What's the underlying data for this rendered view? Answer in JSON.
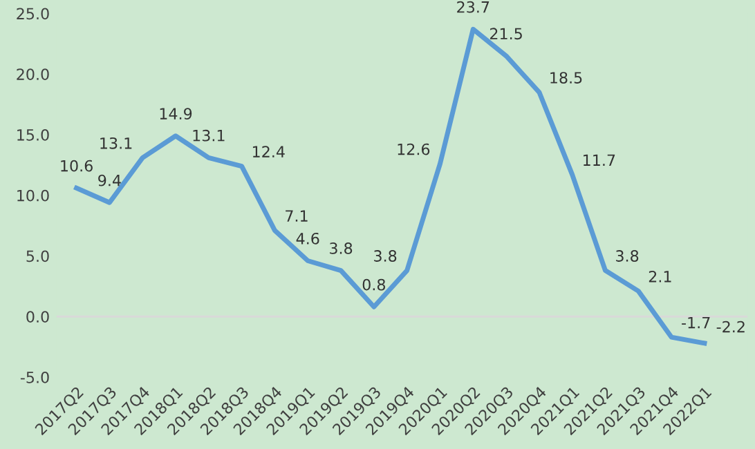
{
  "chart_data": {
    "type": "line",
    "categories": [
      "2017Q2",
      "2017Q3",
      "2017Q4",
      "2018Q1",
      "2018Q2",
      "2018Q3",
      "2018Q4",
      "2019Q1",
      "2019Q2",
      "2019Q3",
      "2019Q4",
      "2020Q1",
      "2020Q2",
      "2020Q3",
      "2020Q4",
      "2021Q1",
      "2021Q2",
      "2021Q3",
      "2021Q4",
      "2022Q1"
    ],
    "series": [
      {
        "color": "#5b9bd5",
        "values": [
          10.6,
          9.4,
          13.1,
          14.9,
          13.1,
          12.4,
          7.1,
          4.6,
          3.8,
          0.8,
          3.8,
          12.6,
          23.7,
          21.5,
          18.5,
          11.7,
          3.8,
          2.1,
          -1.7,
          -2.2
        ]
      }
    ],
    "ylim": [
      -5,
      25
    ],
    "yticks": [
      {
        "value": -5,
        "label": "-5.0"
      },
      {
        "value": 0,
        "label": "0.0"
      },
      {
        "value": 5,
        "label": "5.0"
      },
      {
        "value": 10,
        "label": "10.0"
      },
      {
        "value": 15,
        "label": "15.0"
      },
      {
        "value": 20,
        "label": "20.0"
      },
      {
        "value": 25,
        "label": "25.0"
      }
    ],
    "ref_lines": [
      {
        "axis": "y",
        "value": 0,
        "color": "#d9d9d9"
      }
    ],
    "data_labels": true,
    "grid": false,
    "marker": "none",
    "line_style": "solid"
  }
}
